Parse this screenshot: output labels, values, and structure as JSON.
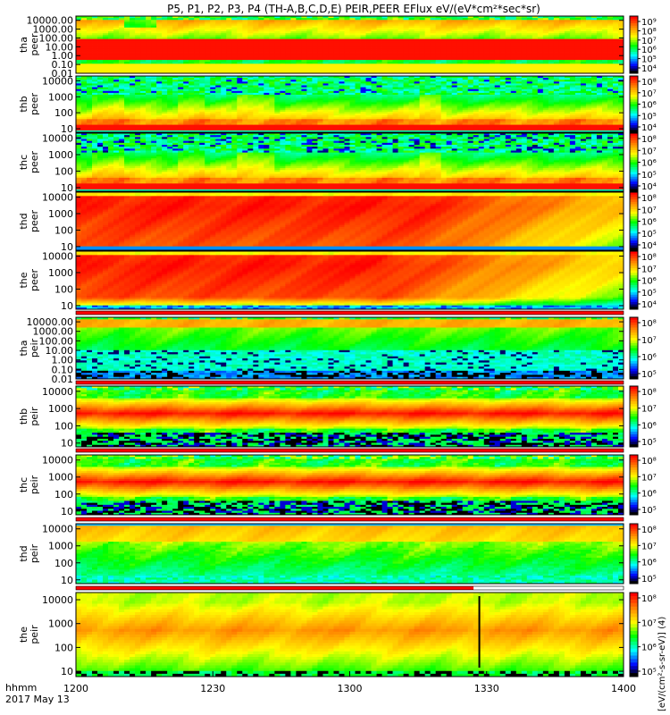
{
  "chart_data": {
    "type": "heatmap",
    "title": "P5, P1, P2, P3, P4 (TH-A,B,C,D,E) PEIR,PEER EFlux eV/(eV*cm²*sec*sr)",
    "x_ticks": [
      "1200",
      "1230",
      "1300",
      "1330",
      "1400"
    ],
    "x_range": [
      "12:00",
      "14:00"
    ],
    "xlabel_line1": "hhmm",
    "xlabel_line2": "2017 May 13",
    "colorbar_label": "[eV/(cm²-s-sr-eV)] (4)",
    "colorbar_ticks_6": [
      "10⁴",
      "10⁵",
      "10⁶",
      "10⁷",
      "10⁸",
      "10⁹"
    ],
    "colorbar_ticks_4": [
      "10⁵",
      "10⁶",
      "10⁷",
      "10⁸"
    ],
    "colorbar_ticks_lo": [
      "10⁴",
      "10⁵",
      "10⁶",
      "10⁷",
      "10⁸"
    ],
    "panels": [
      {
        "label1": "tha",
        "label2": "peer",
        "y_ticks": [
          "10000.00",
          "1000.00",
          "100.00",
          "10.00",
          "1.00",
          "0.10",
          "0.01"
        ],
        "y_range": [
          0.01,
          30000
        ],
        "mode": "tha_peer",
        "cb": "colorbar_ticks_6"
      },
      {
        "label1": "thb",
        "label2": "peer",
        "y_ticks": [
          "10000",
          "1000",
          "100",
          "10"
        ],
        "y_range": [
          6,
          20000
        ],
        "mode": "peer_b",
        "cb": "colorbar_ticks_lo"
      },
      {
        "label1": "thc",
        "label2": "peer",
        "y_ticks": [
          "10000",
          "1000",
          "100",
          "10"
        ],
        "y_range": [
          6,
          20000
        ],
        "mode": "peer_c",
        "cb": "colorbar_ticks_lo"
      },
      {
        "label1": "thd",
        "label2": "peer",
        "y_ticks": [
          "10000",
          "1000",
          "100",
          "10"
        ],
        "y_range": [
          6,
          20000
        ],
        "mode": "peer_d",
        "cb": "colorbar_ticks_lo"
      },
      {
        "label1": "the",
        "label2": "peer",
        "y_ticks": [
          "10000",
          "1000",
          "100",
          "10"
        ],
        "y_range": [
          6,
          20000
        ],
        "mode": "peer_e",
        "cb": "colorbar_ticks_lo"
      },
      {
        "label1": "tha",
        "label2": "peir",
        "y_ticks": [
          "10000.00",
          "1000.00",
          "100.00",
          "10.00",
          "1.00",
          "0.10",
          "0.01"
        ],
        "y_range": [
          0.01,
          30000
        ],
        "mode": "tha_peir",
        "cb": "colorbar_ticks_4"
      },
      {
        "label1": "thb",
        "label2": "peir",
        "y_ticks": [
          "10000",
          "1000",
          "100",
          "10"
        ],
        "y_range": [
          6,
          20000
        ],
        "mode": "peir_b",
        "cb": "colorbar_ticks_4"
      },
      {
        "label1": "thc",
        "label2": "peir",
        "y_ticks": [
          "10000",
          "1000",
          "100",
          "10"
        ],
        "y_range": [
          6,
          20000
        ],
        "mode": "peir_c",
        "cb": "colorbar_ticks_4"
      },
      {
        "label1": "thd",
        "label2": "peir",
        "y_ticks": [
          "10000",
          "1000",
          "100",
          "10"
        ],
        "y_range": [
          6,
          20000
        ],
        "mode": "peir_d",
        "cb": "colorbar_ticks_4"
      },
      {
        "label1": "the",
        "label2": "peir",
        "y_ticks": [
          "10000",
          "1000",
          "100",
          "10"
        ],
        "y_range": [
          6,
          20000
        ],
        "mode": "peir_e",
        "cb": "colorbar_ticks_4"
      }
    ],
    "status_bars": [
      {
        "after_panel": 4,
        "color": "#ff0000",
        "coverage": 1.0
      },
      {
        "after_panel": 5,
        "color": "#ff0000",
        "coverage": 1.0
      },
      {
        "after_panel": 6,
        "color": "#ff0000",
        "coverage": 1.0
      },
      {
        "after_panel": 7,
        "color": "#ff0000",
        "coverage": 1.0
      },
      {
        "after_panel": 8,
        "color": "#ff0000",
        "coverage": 0.726
      }
    ],
    "colormap": [
      "#000000",
      "#0000ff",
      "#00ffff",
      "#00ff00",
      "#ffff00",
      "#ff9900",
      "#ff0000"
    ]
  }
}
